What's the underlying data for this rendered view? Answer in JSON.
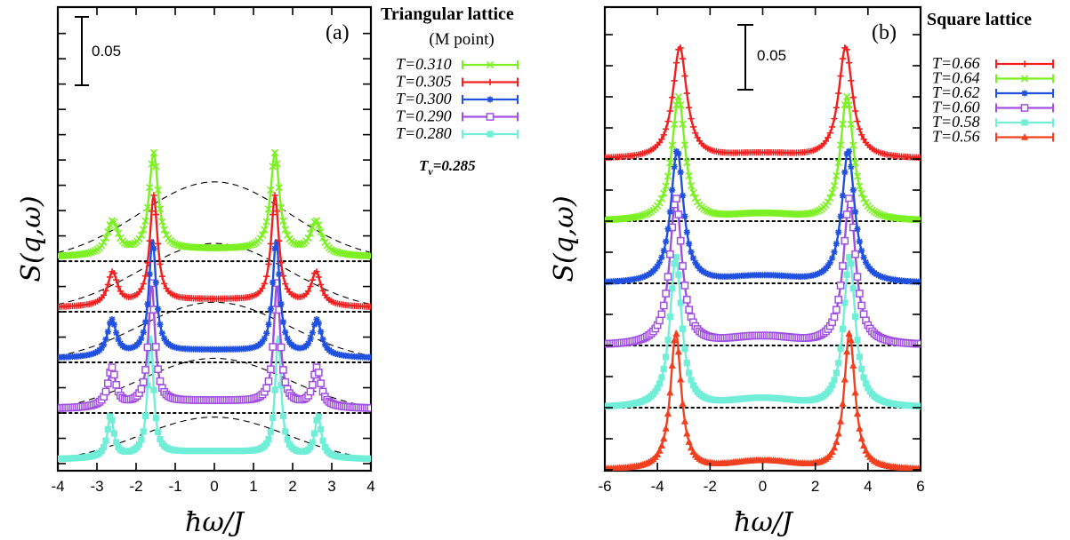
{
  "chart_data": [
    {
      "type": "line",
      "panel_label": "(a)",
      "legend_title": "Triangular lattice",
      "legend_subtitle": "(M point)",
      "annotation": "T_v=0.285",
      "annotation_main": "T",
      "annotation_sub": "v",
      "annotation_rest": "=0.285",
      "scale_bar": "0.05",
      "xlabel": "ħω/J",
      "ylabel": "S(q,ω)",
      "xlim": [
        -4,
        4
      ],
      "xticks": [
        "-4",
        "-3",
        "-2",
        "-1",
        "0",
        "1",
        "2",
        "3",
        "4"
      ],
      "offset_step": 0.037,
      "series": [
        {
          "name": "T=0.310",
          "color": "#7cf022",
          "marker": "x",
          "base": 0.148,
          "peaks": [
            [
              1.55,
              0.072,
              0.14
            ],
            [
              2.6,
              0.024,
              0.17
            ]
          ],
          "bg_amp": 0.006,
          "bg_w": 1.6,
          "floor": 0.003,
          "dash_amp": 0.058
        },
        {
          "name": "T=0.305",
          "color": "#f02020",
          "marker": "plus",
          "base": 0.111,
          "peaks": [
            [
              1.55,
              0.078,
              0.12
            ],
            [
              2.6,
              0.024,
              0.15
            ]
          ],
          "bg_amp": 0.006,
          "bg_w": 1.6,
          "floor": 0.003,
          "dash_amp": 0.05
        },
        {
          "name": "T=0.300",
          "color": "#2050e0",
          "marker": "star",
          "base": 0.074,
          "peaks": [
            [
              1.58,
              0.083,
              0.11
            ],
            [
              2.62,
              0.026,
              0.14
            ]
          ],
          "bg_amp": 0.006,
          "bg_w": 1.6,
          "floor": 0.003,
          "dash_amp": 0.044
        },
        {
          "name": "T=0.290",
          "color": "#a050e0",
          "marker": "square",
          "base": 0.037,
          "peaks": [
            [
              1.6,
              0.088,
              0.1
            ],
            [
              2.62,
              0.028,
              0.12
            ]
          ],
          "bg_amp": 0.006,
          "bg_w": 1.6,
          "floor": 0.003,
          "dash_amp": 0.04
        },
        {
          "name": "T=0.280",
          "color": "#70eed8",
          "marker": "filled-square",
          "base": 0.0,
          "peaks": [
            [
              1.63,
              0.087,
              0.09
            ],
            [
              2.65,
              0.03,
              0.1
            ]
          ],
          "bg_amp": 0.006,
          "bg_w": 1.6,
          "floor": 0.003,
          "dash_amp": 0.034
        }
      ]
    },
    {
      "type": "line",
      "panel_label": "(b)",
      "legend_title": "Square lattice",
      "scale_bar": "0.05",
      "xlabel": "ħω/J",
      "ylabel": "S(q,ω)",
      "xlim": [
        -6,
        6
      ],
      "xticks": [
        "-6",
        "-4",
        "-2",
        "0",
        "2",
        "4",
        "6"
      ],
      "offset_step": 0.035,
      "series": [
        {
          "name": "T=0.66",
          "color": "#f02020",
          "marker": "plus",
          "base": 0.175,
          "peaks": [
            [
              3.15,
              0.063,
              0.32
            ]
          ],
          "bg_amp": 0.003,
          "bg_w": 1.2,
          "floor": 0.0
        },
        {
          "name": "T=0.64",
          "color": "#7cf022",
          "marker": "x",
          "base": 0.14,
          "peaks": [
            [
              3.2,
              0.07,
              0.3
            ]
          ],
          "bg_amp": 0.004,
          "bg_w": 1.2,
          "floor": 0.0
        },
        {
          "name": "T=0.62",
          "color": "#2050e0",
          "marker": "star",
          "base": 0.105,
          "peaks": [
            [
              3.25,
              0.075,
              0.29
            ]
          ],
          "bg_amp": 0.004,
          "bg_w": 1.2,
          "floor": 0.0
        },
        {
          "name": "T=0.60",
          "color": "#a050e0",
          "marker": "square",
          "base": 0.07,
          "peaks": [
            [
              3.3,
              0.083,
              0.28
            ]
          ],
          "bg_amp": 0.005,
          "bg_w": 1.2,
          "floor": 0.0
        },
        {
          "name": "T=0.58",
          "color": "#70eed8",
          "marker": "filled-square",
          "base": 0.035,
          "peaks": [
            [
              3.3,
              0.085,
              0.27
            ]
          ],
          "bg_amp": 0.005,
          "bg_w": 1.2,
          "floor": 0.0
        },
        {
          "name": "T=0.56",
          "color": "#f04020",
          "marker": "triangle",
          "base": 0.0,
          "peaks": [
            [
              3.3,
              0.077,
              0.25
            ]
          ],
          "bg_amp": 0.005,
          "bg_w": 1.2,
          "floor": 0.0
        }
      ]
    }
  ]
}
